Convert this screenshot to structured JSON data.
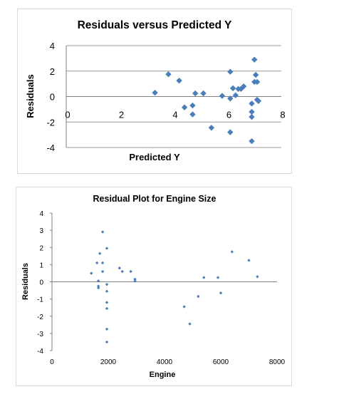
{
  "chart_data": [
    {
      "type": "scatter",
      "title": "Residuals versus Predicted Y",
      "xlabel": "Predicted Y",
      "ylabel": "Residuals",
      "xlim": [
        0,
        8
      ],
      "ylim": [
        -4,
        4
      ],
      "x_ticks": [
        "0",
        "2",
        "4",
        "6",
        "8"
      ],
      "y_ticks": [
        "4",
        "2",
        "0",
        "-2",
        "-4"
      ],
      "grid": "horizontal",
      "marker": "diamond",
      "color": "#4a7ebb",
      "points": [
        {
          "x": 3.3,
          "y": 0.3
        },
        {
          "x": 3.8,
          "y": 1.75
        },
        {
          "x": 4.2,
          "y": 1.25
        },
        {
          "x": 4.4,
          "y": -0.85
        },
        {
          "x": 4.7,
          "y": -0.7
        },
        {
          "x": 4.7,
          "y": -1.4
        },
        {
          "x": 4.8,
          "y": 0.25
        },
        {
          "x": 5.1,
          "y": 0.25
        },
        {
          "x": 5.4,
          "y": -2.45
        },
        {
          "x": 5.8,
          "y": 0.05
        },
        {
          "x": 6.1,
          "y": 1.95
        },
        {
          "x": 6.1,
          "y": -0.15
        },
        {
          "x": 6.2,
          "y": 0.65
        },
        {
          "x": 6.3,
          "y": 0.1
        },
        {
          "x": 6.4,
          "y": 0.6
        },
        {
          "x": 6.5,
          "y": 0.6
        },
        {
          "x": 6.6,
          "y": 0.8
        },
        {
          "x": 6.1,
          "y": -2.8
        },
        {
          "x": 6.9,
          "y": -0.55
        },
        {
          "x": 6.9,
          "y": -1.2
        },
        {
          "x": 6.9,
          "y": -1.6
        },
        {
          "x": 6.9,
          "y": -3.5
        },
        {
          "x": 7.0,
          "y": 2.9
        },
        {
          "x": 7.0,
          "y": 1.15
        },
        {
          "x": 7.05,
          "y": 1.7
        },
        {
          "x": 7.1,
          "y": 1.15
        },
        {
          "x": 7.1,
          "y": -0.25
        },
        {
          "x": 7.15,
          "y": -0.35
        }
      ]
    },
    {
      "type": "scatter",
      "title": "Residual Plot for Engine Size",
      "xlabel": "Engine",
      "ylabel": "Residuals",
      "xlim": [
        0,
        8000
      ],
      "ylim": [
        -4,
        4
      ],
      "x_ticks": [
        "0",
        "2000",
        "4000",
        "6000",
        "8000"
      ],
      "y_ticks": [
        "4",
        "3",
        "2",
        "1",
        "0",
        "-1",
        "-2",
        "-3",
        "-4"
      ],
      "grid": "none",
      "marker": "diamond-small",
      "color": "#4a7ebb",
      "points": [
        {
          "x": 1400,
          "y": 0.5
        },
        {
          "x": 1600,
          "y": 1.1
        },
        {
          "x": 1650,
          "y": 0.05
        },
        {
          "x": 1650,
          "y": -0.35
        },
        {
          "x": 1650,
          "y": -0.25
        },
        {
          "x": 1700,
          "y": 1.65
        },
        {
          "x": 1800,
          "y": 2.9
        },
        {
          "x": 1800,
          "y": 1.1
        },
        {
          "x": 1800,
          "y": 0.6
        },
        {
          "x": 1950,
          "y": 1.95
        },
        {
          "x": 1950,
          "y": -0.15
        },
        {
          "x": 1950,
          "y": -0.55
        },
        {
          "x": 1950,
          "y": -1.2
        },
        {
          "x": 1950,
          "y": -1.55
        },
        {
          "x": 1950,
          "y": -2.75
        },
        {
          "x": 1950,
          "y": -3.5
        },
        {
          "x": 2400,
          "y": 0.8
        },
        {
          "x": 2500,
          "y": 0.6
        },
        {
          "x": 2800,
          "y": 0.6
        },
        {
          "x": 2950,
          "y": 0.15
        },
        {
          "x": 2950,
          "y": 0.05
        },
        {
          "x": 4700,
          "y": -1.45
        },
        {
          "x": 4900,
          "y": -2.45
        },
        {
          "x": 5200,
          "y": -0.85
        },
        {
          "x": 5400,
          "y": 0.25
        },
        {
          "x": 5900,
          "y": 0.25
        },
        {
          "x": 6000,
          "y": -0.65
        },
        {
          "x": 6400,
          "y": 1.75
        },
        {
          "x": 7000,
          "y": 1.25
        },
        {
          "x": 7300,
          "y": 0.3
        }
      ]
    }
  ]
}
